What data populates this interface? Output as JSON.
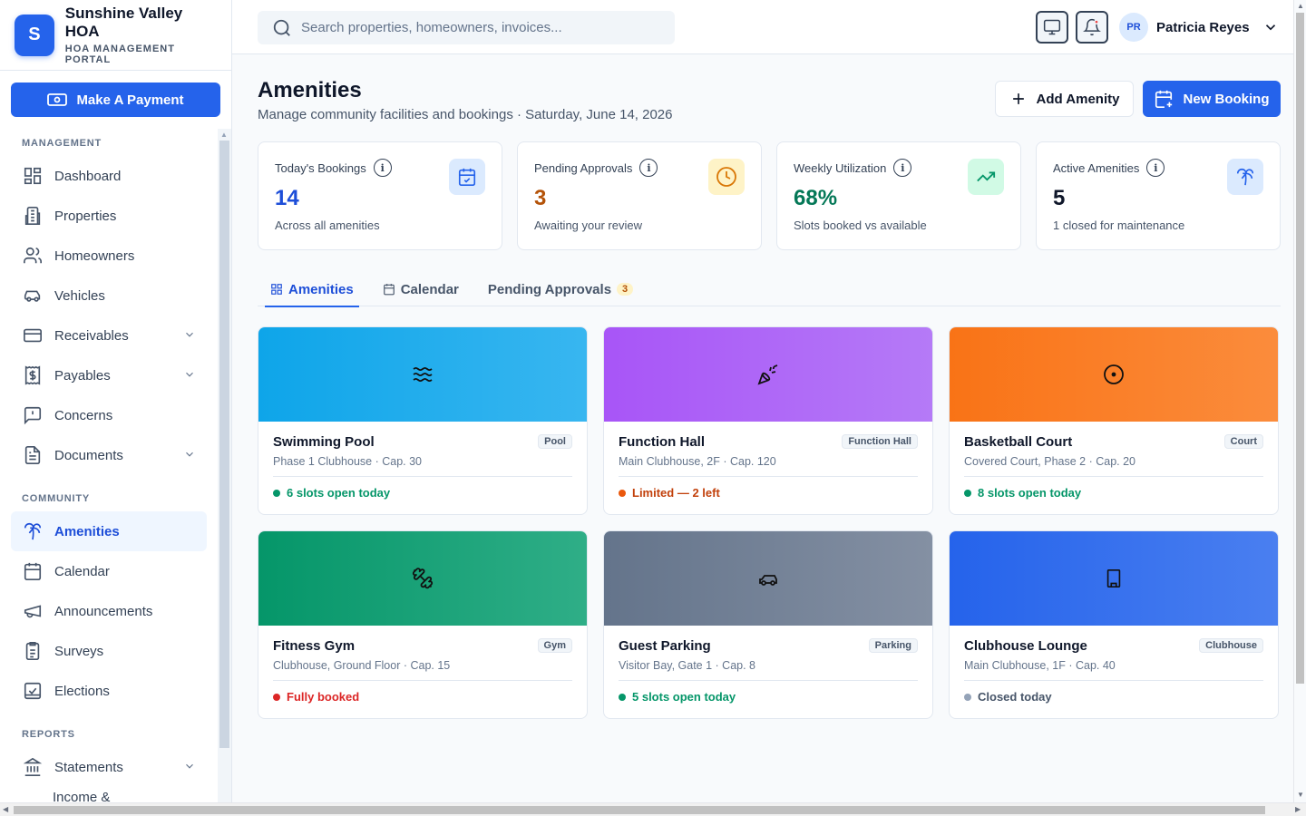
{
  "brand": {
    "logo_letter": "S",
    "name": "Sunshine Valley HOA",
    "subtitle": "HOA MANAGEMENT PORTAL"
  },
  "sidebar": {
    "pay_button": "Make A Payment",
    "sections": {
      "management": "MANAGEMENT",
      "community": "COMMUNITY",
      "reports": "REPORTS"
    },
    "items": {
      "dashboard": "Dashboard",
      "properties": "Properties",
      "homeowners": "Homeowners",
      "vehicles": "Vehicles",
      "receivables": "Receivables",
      "payables": "Payables",
      "concerns": "Concerns",
      "documents": "Documents",
      "amenities": "Amenities",
      "calendar": "Calendar",
      "announcements": "Announcements",
      "surveys": "Surveys",
      "elections": "Elections",
      "statements": "Statements",
      "income": "Income &"
    }
  },
  "topbar": {
    "search_placeholder": "Search properties, homeowners, invoices...",
    "user_initials": "PR",
    "user_name": "Patricia Reyes"
  },
  "page": {
    "title": "Amenities",
    "subtitle": "Manage community facilities and bookings · Saturday, June 14, 2026",
    "add_button": "Add Amenity",
    "new_button": "New Booking"
  },
  "stats": [
    {
      "label": "Today's Bookings",
      "value": "14",
      "note": "Across all amenities",
      "color": "#1d4ed8",
      "icon_bg": "#dbeafe"
    },
    {
      "label": "Pending Approvals",
      "value": "3",
      "note": "Awaiting your review",
      "color": "#b45309",
      "icon_bg": "#fef3c7"
    },
    {
      "label": "Weekly Utilization",
      "value": "68%",
      "note": "Slots booked vs available",
      "color": "#047857",
      "icon_bg": "#d1fae5"
    },
    {
      "label": "Active Amenities",
      "value": "5",
      "note": "1 closed for maintenance",
      "color": "#0f172a",
      "icon_bg": "#dbeafe"
    }
  ],
  "tabs": {
    "amenities": "Amenities",
    "calendar": "Calendar",
    "pending": "Pending Approvals",
    "pending_count": "3"
  },
  "amenities": [
    {
      "name": "Swimming Pool",
      "tag": "Pool",
      "location": "Phase 1 Clubhouse · Cap. 30",
      "status": "6 slots open today",
      "status_color": "#059669",
      "icon": "waves-icon"
    },
    {
      "name": "Function Hall",
      "tag": "Function Hall",
      "location": "Main Clubhouse, 2F · Cap. 120",
      "status": "Limited — 2 left",
      "status_color": "#c2410c",
      "icon": "party-popper-icon"
    },
    {
      "name": "Basketball Court",
      "tag": "Court",
      "location": "Covered Court, Phase 2 · Cap. 20",
      "status": "8 slots open today",
      "status_color": "#059669",
      "icon": "target-icon"
    },
    {
      "name": "Fitness Gym",
      "tag": "Gym",
      "location": "Clubhouse, Ground Floor · Cap. 15",
      "status": "Fully booked",
      "status_color": "#dc2626",
      "icon": "dumbbell-icon"
    },
    {
      "name": "Guest Parking",
      "tag": "Parking",
      "location": "Visitor Bay, Gate 1 · Cap. 8",
      "status": "5 slots open today",
      "status_color": "#059669",
      "icon": "car-icon"
    },
    {
      "name": "Clubhouse Lounge",
      "tag": "Clubhouse",
      "location": "Main Clubhouse, 1F · Cap. 40",
      "status": "Closed today",
      "status_color": "#94a3b8",
      "icon": "building-icon"
    }
  ],
  "colors": {
    "primary": "#2563eb",
    "pool": "#0ea5e9",
    "hall": "#a855f7",
    "court": "#f97316",
    "gym": "#059669",
    "parking": "#64748b",
    "lounge": "#2563eb"
  }
}
